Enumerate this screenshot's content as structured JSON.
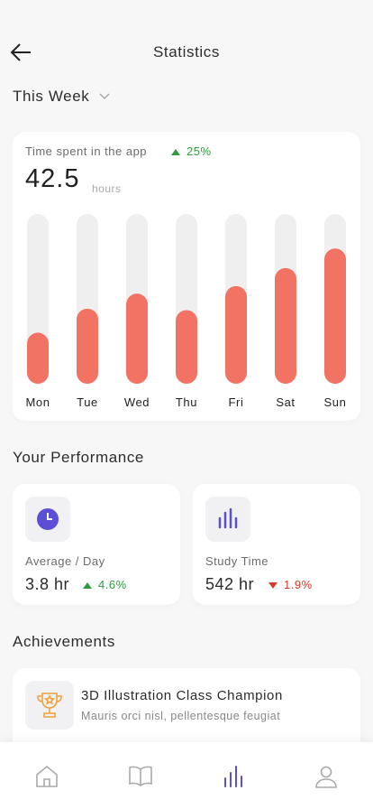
{
  "header": {
    "title": "Statistics"
  },
  "period": "This Week",
  "time_card": {
    "label": "Time spent in the app",
    "change": "25%",
    "trend": "up",
    "value": "42.5",
    "unit": "hours"
  },
  "chart_data": {
    "type": "bar",
    "categories": [
      "Mon",
      "Tue",
      "Wed",
      "Thu",
      "Fri",
      "Sat",
      "Sun"
    ],
    "values": [
      3.4,
      5.0,
      6.0,
      4.9,
      6.5,
      7.7,
      9.0
    ],
    "ylim": [
      0,
      11.3
    ],
    "color": "#f27363",
    "track_color": "#efefef"
  },
  "performance": {
    "title": "Your Performance",
    "cards": [
      {
        "label": "Average / Day",
        "value": "3.8 hr",
        "change": "4.6%",
        "trend": "up"
      },
      {
        "label": "Study Time",
        "value": "542 hr",
        "change": "1.9%",
        "trend": "down"
      }
    ]
  },
  "achievements": {
    "title": "Achievements",
    "items": [
      {
        "title": "3D Illustration Class Champion",
        "subtitle": "Mauris orci nisl, pellentesque feugiat"
      }
    ]
  }
}
